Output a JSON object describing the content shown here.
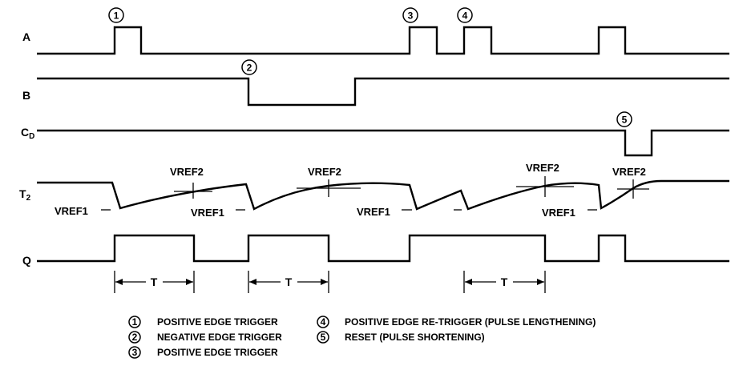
{
  "signals": {
    "a": "A",
    "b": "B",
    "cd_main": "C",
    "cd_sub": "D",
    "t2_main": "T",
    "t2_sub": "2",
    "q": "Q"
  },
  "markers": [
    "1",
    "2",
    "3",
    "4",
    "5"
  ],
  "vref": {
    "v": "V",
    "ref1": "REF1",
    "ref2": "REF2"
  },
  "period_label": "T",
  "legend": [
    {
      "num": "1",
      "text": "POSITIVE EDGE TRIGGER"
    },
    {
      "num": "2",
      "text": "NEGATIVE EDGE TRIGGER"
    },
    {
      "num": "3",
      "text": "POSITIVE EDGE TRIGGER"
    },
    {
      "num": "4",
      "text": "POSITIVE EDGE RE-TRIGGER (PULSE LENGTHENING)"
    },
    {
      "num": "5",
      "text": "RESET (PULSE SHORTENING)"
    }
  ]
}
